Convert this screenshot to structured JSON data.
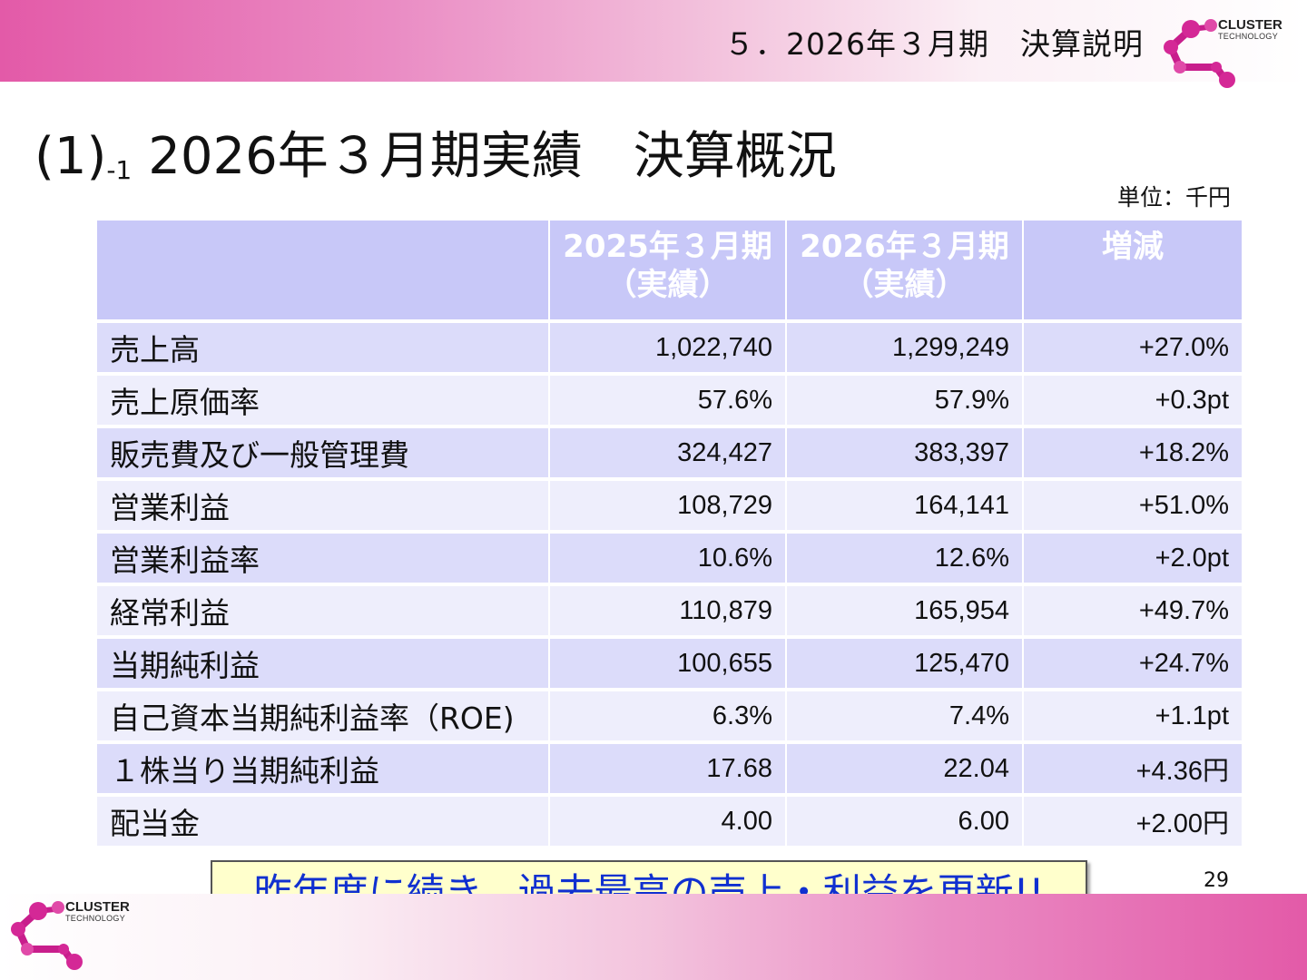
{
  "header": {
    "section_title": "５．2026年３月期　決算説明",
    "logo": {
      "line1": "CLUSTER",
      "line2": "TECHNOLOGY",
      "icon": "cluster-molecule-logo"
    }
  },
  "page": {
    "heading_num": "(1)",
    "heading_sub": "-1",
    "heading_text": "2026年３月期実績　決算概況",
    "unit": "単位：千円"
  },
  "table": {
    "headers": [
      {
        "line1": "",
        "line2": ""
      },
      {
        "line1": "2025年３月期",
        "line2": "（実績）"
      },
      {
        "line1": "2026年３月期",
        "line2": "（実績）"
      },
      {
        "line1": "増減",
        "line2": ""
      }
    ],
    "rows": [
      {
        "label": "売上高",
        "prev": "1,022,740",
        "curr": "1,299,249",
        "diff": "+27.0%"
      },
      {
        "label": "売上原価率",
        "prev": "57.6%",
        "curr": "57.9%",
        "diff": "+0.3pt"
      },
      {
        "label": "販売費及び一般管理費",
        "prev": "324,427",
        "curr": "383,397",
        "diff": "+18.2%"
      },
      {
        "label": "営業利益",
        "prev": "108,729",
        "curr": "164,141",
        "diff": "+51.0%"
      },
      {
        "label": "営業利益率",
        "prev": "10.6%",
        "curr": "12.6%",
        "diff": "+2.0pt"
      },
      {
        "label": "経常利益",
        "prev": "110,879",
        "curr": "165,954",
        "diff": "+49.7%"
      },
      {
        "label": "当期純利益",
        "prev": "100,655",
        "curr": "125,470",
        "diff": "+24.7%"
      },
      {
        "label": "自己資本当期純利益率（ROE)",
        "prev": "6.3%",
        "curr": "7.4%",
        "diff": "+1.1pt"
      },
      {
        "label": "１株当り当期純利益",
        "prev": "17.68",
        "curr": "22.04",
        "diff": "+4.36円"
      },
      {
        "label": "配当金",
        "prev": "4.00",
        "curr": "6.00",
        "diff": "+2.00円"
      }
    ]
  },
  "callout": "昨年度に続き、過去最高の売上・利益を更新!!",
  "page_number": "29",
  "colors": {
    "accent_pink": "#e35aa8",
    "header_cell": "#c8c8f8",
    "row_dark": "#dcdcfa",
    "row_light": "#eeeefc",
    "callout_text": "#1030d0",
    "callout_bg": "#ffffcc"
  }
}
